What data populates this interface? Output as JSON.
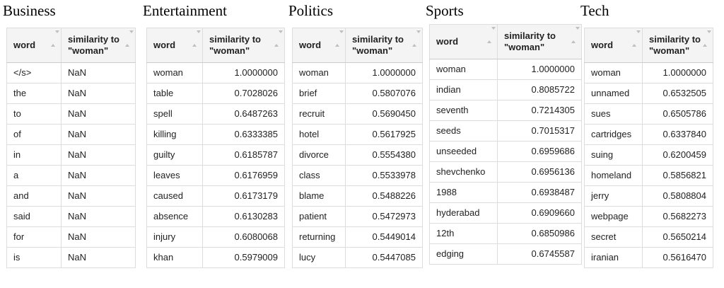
{
  "colors": {
    "page_background": "#ffffff",
    "header_background": "#f4f4f4",
    "table_border": "#dddddd",
    "text": "#222222",
    "sort_icon": "#bfbfbf"
  },
  "tables": [
    {
      "title": "Business",
      "word_header": "word",
      "similarity_header": "similarity to \"woman\"",
      "value_align": "left",
      "rows": [
        [
          "</s>",
          "NaN"
        ],
        [
          "the",
          "NaN"
        ],
        [
          "to",
          "NaN"
        ],
        [
          "of",
          "NaN"
        ],
        [
          "in",
          "NaN"
        ],
        [
          "a",
          "NaN"
        ],
        [
          "and",
          "NaN"
        ],
        [
          "said",
          "NaN"
        ],
        [
          "for",
          "NaN"
        ],
        [
          "is",
          "NaN"
        ]
      ]
    },
    {
      "title": "Entertainment",
      "word_header": "word",
      "similarity_header": "similarity to \"woman\"",
      "value_align": "right",
      "rows": [
        [
          "woman",
          "1.0000000"
        ],
        [
          "table",
          "0.7028026"
        ],
        [
          "spell",
          "0.6487263"
        ],
        [
          "killing",
          "0.6333385"
        ],
        [
          "guilty",
          "0.6185787"
        ],
        [
          "leaves",
          "0.6176959"
        ],
        [
          "caused",
          "0.6173179"
        ],
        [
          "absence",
          "0.6130283"
        ],
        [
          "injury",
          "0.6080068"
        ],
        [
          "khan",
          "0.5979009"
        ]
      ]
    },
    {
      "title": "Politics",
      "word_header": "word",
      "similarity_header": "similarity to \"woman\"",
      "value_align": "right",
      "rows": [
        [
          "woman",
          "1.0000000"
        ],
        [
          "brief",
          "0.5807076"
        ],
        [
          "recruit",
          "0.5690450"
        ],
        [
          "hotel",
          "0.5617925"
        ],
        [
          "divorce",
          "0.5554380"
        ],
        [
          "class",
          "0.5533978"
        ],
        [
          "blame",
          "0.5488226"
        ],
        [
          "patient",
          "0.5472973"
        ],
        [
          "returning",
          "0.5449014"
        ],
        [
          "lucy",
          "0.5447085"
        ]
      ]
    },
    {
      "title": "Sports",
      "word_header": "word",
      "similarity_header": "similarity to \"woman\"",
      "value_align": "right",
      "rows": [
        [
          "woman",
          "1.0000000"
        ],
        [
          "indian",
          "0.8085722"
        ],
        [
          "seventh",
          "0.7214305"
        ],
        [
          "seeds",
          "0.7015317"
        ],
        [
          "unseeded",
          "0.6959686"
        ],
        [
          "shevchenko",
          "0.6956136"
        ],
        [
          "1988",
          "0.6938487"
        ],
        [
          "hyderabad",
          "0.6909660"
        ],
        [
          "12th",
          "0.6850986"
        ],
        [
          "edging",
          "0.6745587"
        ]
      ]
    },
    {
      "title": "Tech",
      "word_header": "word",
      "similarity_header": "similarity to \"woman\"",
      "value_align": "right",
      "rows": [
        [
          "woman",
          "1.0000000"
        ],
        [
          "unnamed",
          "0.6532505"
        ],
        [
          "sues",
          "0.6505786"
        ],
        [
          "cartridges",
          "0.6337840"
        ],
        [
          "suing",
          "0.6200459"
        ],
        [
          "homeland",
          "0.5856821"
        ],
        [
          "jerry",
          "0.5808804"
        ],
        [
          "webpage",
          "0.5682273"
        ],
        [
          "secret",
          "0.5650214"
        ],
        [
          "iranian",
          "0.5616470"
        ]
      ]
    }
  ]
}
